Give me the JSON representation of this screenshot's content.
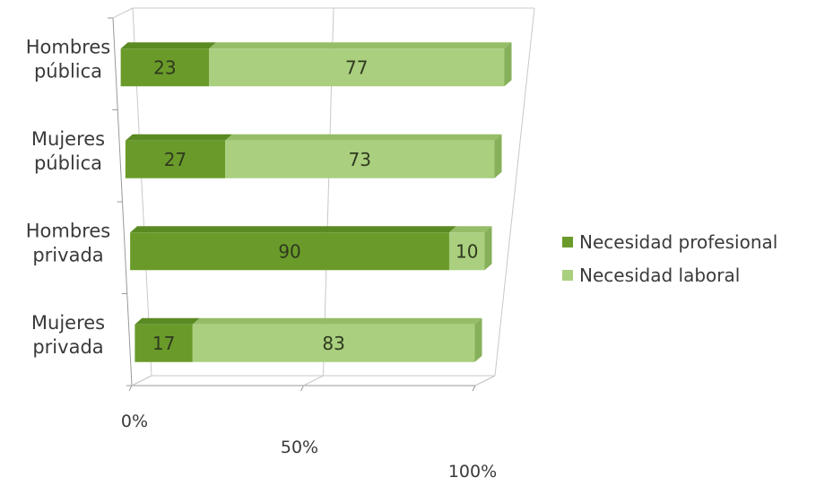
{
  "chart_data": {
    "type": "bar",
    "orientation": "horizontal",
    "stacked": "percent",
    "style": "3d",
    "categories": [
      "Hombres pública",
      "Mujeres pública",
      "Hombres privada",
      "Mujeres privada"
    ],
    "category_lines": [
      [
        "Hombres",
        "pública"
      ],
      [
        "Mujeres",
        "pública"
      ],
      [
        "Hombres",
        "privada"
      ],
      [
        "Mujeres",
        "privada"
      ]
    ],
    "series": [
      {
        "name": "Necesidad profesional",
        "values": [
          23,
          27,
          90,
          17
        ]
      },
      {
        "name": "Necesidad laboral",
        "values": [
          77,
          73,
          10,
          83
        ]
      }
    ],
    "xlim": [
      0,
      100
    ],
    "x_ticks": [
      "0%",
      "50%",
      "100%"
    ],
    "grid": true,
    "legend_position": "right",
    "colors": {
      "series": [
        "#6a9b2a",
        "#a9cf7f"
      ],
      "series_top": [
        "#5a8a22",
        "#95bd68"
      ],
      "series_end": [
        "#4f7a1c",
        "#86b05a"
      ],
      "grid": "#c8c8c8",
      "axis": "#9a9a9a"
    }
  }
}
